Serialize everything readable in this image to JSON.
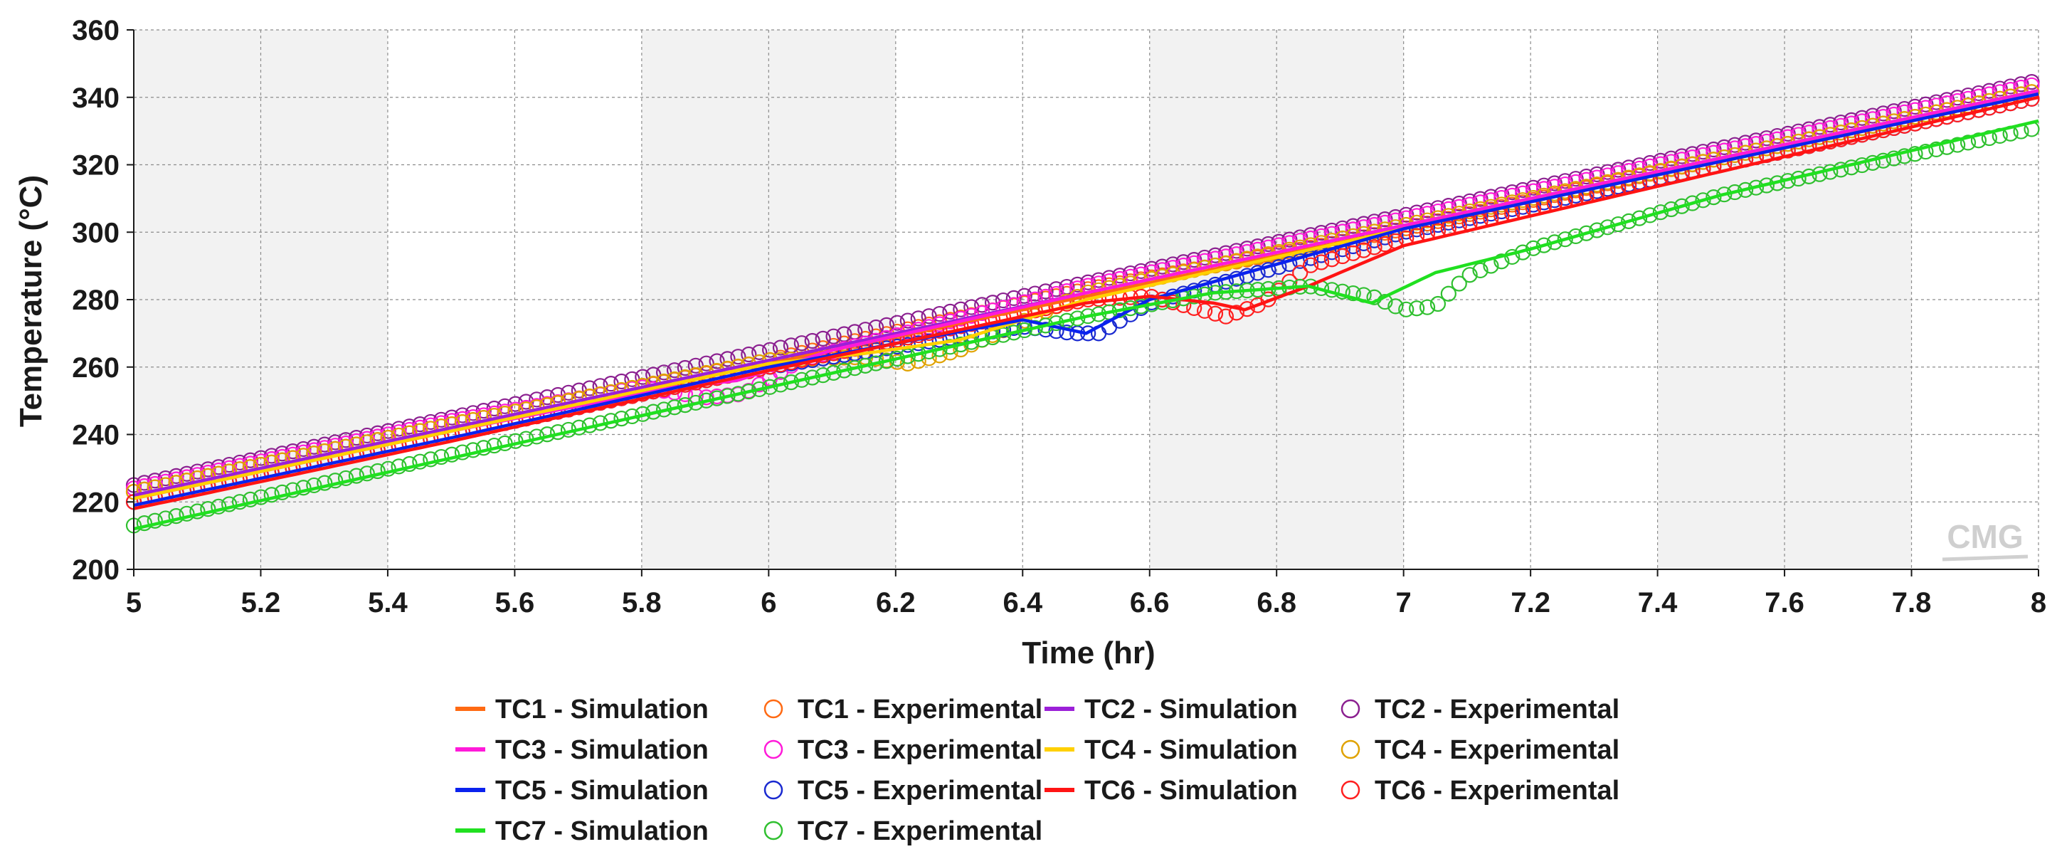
{
  "chart_data": {
    "type": "line",
    "title": "",
    "xlabel": "Time (hr)",
    "ylabel": "Temperature (°C)",
    "xlim": [
      5,
      8
    ],
    "ylim": [
      200,
      360
    ],
    "xticks": [
      5,
      5.2,
      5.4,
      5.6,
      5.8,
      6,
      6.2,
      6.4,
      6.6,
      6.8,
      7,
      7.2,
      7.4,
      7.6,
      7.8,
      8
    ],
    "xtick_labels": [
      "5",
      "5.2",
      "5.4",
      "5.6",
      "5.8",
      "6",
      "6.2",
      "6.4",
      "6.6",
      "6.8",
      "7",
      "7.2",
      "7.4",
      "7.6",
      "7.8",
      "8"
    ],
    "yticks": [
      200,
      220,
      240,
      260,
      280,
      300,
      320,
      340,
      360
    ],
    "ytick_labels": [
      "200",
      "220",
      "240",
      "260",
      "280",
      "300",
      "320",
      "340",
      "360"
    ],
    "grid": true,
    "legend_position": "bottom",
    "watermark": "CMG",
    "series": [
      {
        "name": "TC1 - Simulation",
        "kind": "line",
        "color": "#ff6a13",
        "x": [
          5,
          5.5,
          6,
          6.5,
          7,
          7.5,
          8
        ],
        "y": [
          221,
          241,
          261,
          281,
          301,
          321,
          341
        ]
      },
      {
        "name": "TC1 - Experimental",
        "kind": "marker",
        "color": "#ff6a13",
        "x": [
          5,
          5.5,
          5.9,
          6.0,
          6.5,
          6.9,
          7.0,
          7.5,
          8
        ],
        "y": [
          223,
          243,
          258,
          262,
          283,
          297,
          301,
          322,
          342
        ]
      },
      {
        "name": "TC2 - Simulation",
        "kind": "line",
        "color": "#9b20d8",
        "x": [
          5,
          5.5,
          6,
          6.5,
          7,
          7.5,
          8
        ],
        "y": [
          222,
          242,
          262,
          282,
          302,
          322,
          342
        ]
      },
      {
        "name": "TC2 - Experimental",
        "kind": "marker",
        "color": "#8b2090",
        "x": [
          5,
          5.5,
          6,
          6.5,
          7,
          7.5,
          8
        ],
        "y": [
          225,
          245,
          265,
          285,
          305,
          325,
          345
        ]
      },
      {
        "name": "TC3 - Simulation",
        "kind": "line",
        "color": "#ff1ad9",
        "x": [
          5,
          5.5,
          5.85,
          5.95,
          6.1,
          6.5,
          7,
          7.5,
          8
        ],
        "y": [
          221,
          241,
          254,
          256,
          265,
          282,
          302,
          322,
          342
        ]
      },
      {
        "name": "TC3 - Experimental",
        "kind": "marker",
        "color": "#ff1ad9",
        "x": [
          5,
          5.5,
          5.8,
          5.9,
          5.96,
          6.05,
          6.5,
          7,
          7.5,
          8
        ],
        "y": [
          224,
          244,
          254,
          251,
          252,
          262,
          284,
          304,
          324,
          344
        ]
      },
      {
        "name": "TC4 - Simulation",
        "kind": "line",
        "color": "#ffd000",
        "x": [
          5,
          5.5,
          6,
          6.15,
          6.3,
          6.5,
          7,
          7.5,
          8
        ],
        "y": [
          221,
          241,
          261,
          264,
          268,
          280,
          301,
          321,
          341
        ]
      },
      {
        "name": "TC4 - Experimental",
        "kind": "marker",
        "color": "#e0a200",
        "x": [
          5,
          5.5,
          6,
          6.15,
          6.22,
          6.3,
          6.5,
          7,
          7.5,
          8
        ],
        "y": [
          223,
          243,
          262,
          263,
          261,
          265,
          282,
          302,
          322,
          342
        ]
      },
      {
        "name": "TC5 - Simulation",
        "kind": "line",
        "color": "#0a22ee",
        "x": [
          5,
          5.5,
          6,
          6.4,
          6.5,
          6.6,
          7,
          7.5,
          8
        ],
        "y": [
          219,
          239,
          260,
          274,
          270,
          280,
          301,
          321,
          341
        ]
      },
      {
        "name": "TC5 - Experimental",
        "kind": "marker",
        "color": "#1a2ad0",
        "x": [
          5,
          5.5,
          6,
          6.4,
          6.48,
          6.52,
          6.6,
          7,
          7.5,
          8
        ],
        "y": [
          220,
          240,
          260,
          272,
          270,
          270,
          279,
          300,
          320,
          340
        ]
      },
      {
        "name": "TC6 - Simulation",
        "kind": "line",
        "color": "#ff1414",
        "x": [
          5,
          5.5,
          6,
          6.5,
          6.6,
          6.7,
          6.75,
          6.85,
          7,
          7.5,
          8
        ],
        "y": [
          218,
          238,
          259,
          279,
          281,
          279,
          277,
          284,
          296,
          318,
          340
        ]
      },
      {
        "name": "TC6 - Experimental",
        "kind": "marker",
        "color": "#ff2020",
        "x": [
          5,
          5.5,
          6,
          6.5,
          6.6,
          6.68,
          6.72,
          6.78,
          6.85,
          7,
          7.5,
          8
        ],
        "y": [
          220,
          240,
          260,
          280,
          281,
          277,
          275,
          279,
          290,
          298,
          320,
          340
        ]
      },
      {
        "name": "TC7 - Simulation",
        "kind": "line",
        "color": "#20e020",
        "x": [
          5,
          5.5,
          6,
          6.5,
          6.7,
          6.85,
          6.95,
          7.05,
          7.2,
          7.5,
          8
        ],
        "y": [
          212,
          233,
          254,
          275,
          282,
          284,
          279,
          288,
          295,
          311,
          333
        ]
      },
      {
        "name": "TC7 - Experimental",
        "kind": "marker",
        "color": "#30c030",
        "x": [
          5,
          5.5,
          6,
          6.5,
          6.7,
          6.85,
          6.95,
          7.0,
          7.05,
          7.1,
          7.2,
          7.5,
          8
        ],
        "y": [
          213,
          234,
          254,
          275,
          282,
          284,
          281,
          277,
          278,
          287,
          295,
          311,
          331
        ]
      }
    ]
  }
}
